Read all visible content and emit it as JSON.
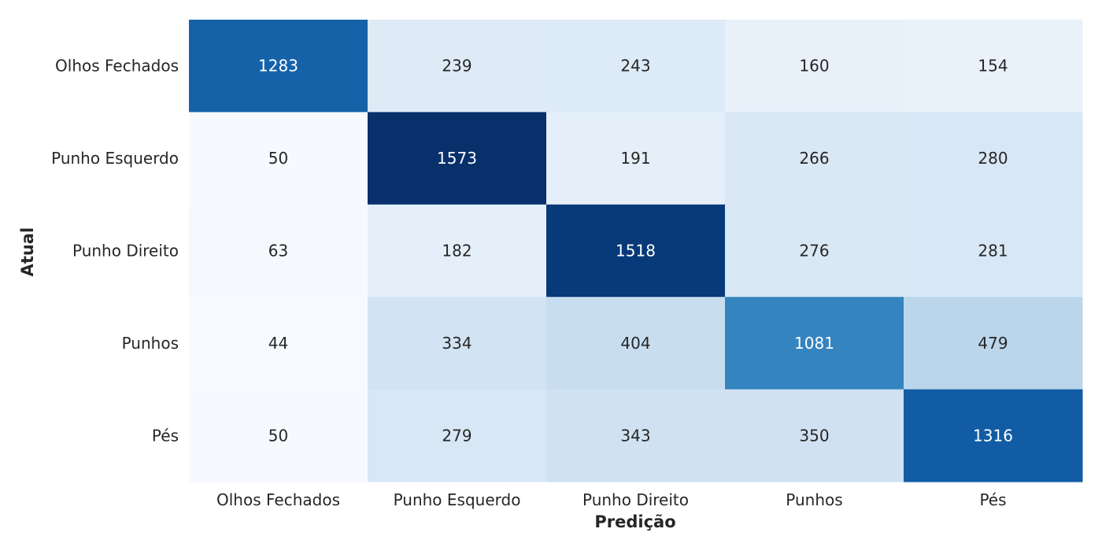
{
  "chart_data": {
    "type": "heatmap",
    "title": "",
    "xlabel": "Predição",
    "ylabel": "Atual",
    "x_categories": [
      "Olhos Fechados",
      "Punho Esquerdo",
      "Punho Direito",
      "Punhos",
      "Pés"
    ],
    "y_categories": [
      "Olhos Fechados",
      "Punho Esquerdo",
      "Punho Direito",
      "Punhos",
      "Pés"
    ],
    "values": [
      [
        1283,
        239,
        243,
        160,
        154
      ],
      [
        50,
        1573,
        191,
        266,
        280
      ],
      [
        63,
        182,
        1518,
        276,
        281
      ],
      [
        44,
        334,
        404,
        1081,
        479
      ],
      [
        50,
        279,
        343,
        350,
        1316
      ]
    ],
    "colormap": "Blues",
    "vmin": 44,
    "vmax": 1573,
    "colorbar": false,
    "grid": false
  }
}
